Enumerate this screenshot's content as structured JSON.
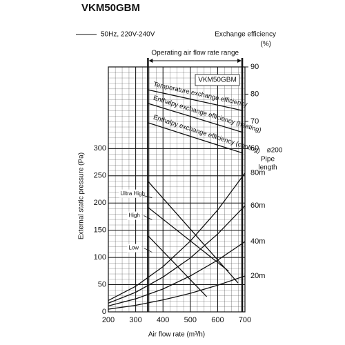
{
  "chart_data": {
    "type": "line",
    "title": "VKM50GBM",
    "power_note": "50Hz, 220V-240V",
    "inset_label": "VKM50GBM",
    "range_label": "Operating air flow rate range",
    "operating_range": [
      345,
      690
    ],
    "x_label": "Air flow rate (m³/h)",
    "y_label": "External static pressure (Pa)",
    "y2_label": "Exchange efficiency",
    "y2_unit": "(%)",
    "pipe_label": "ø200",
    "pipe_label2": "Pipe",
    "pipe_label3": "length",
    "xlim": [
      200,
      700
    ],
    "xticks": [
      200,
      300,
      400,
      500,
      600,
      700
    ],
    "ylim": [
      0,
      450
    ],
    "yticks": [
      0,
      50,
      100,
      150,
      200,
      250,
      300
    ],
    "y2lim": [
      0,
      90
    ],
    "y2ticks": [
      60,
      70,
      80,
      90
    ],
    "grid": true,
    "series": [
      {
        "name": "Ultra High",
        "color": "#111111",
        "x": [
          345,
          675
        ],
        "values": [
          240,
          53
        ]
      },
      {
        "name": "High",
        "color": "#111111",
        "x": [
          345,
          640
        ],
        "values": [
          192,
          75
        ]
      },
      {
        "name": "Low",
        "color": "#111111",
        "x": [
          345,
          560
        ],
        "values": [
          140,
          28
        ]
      },
      {
        "name": "80m",
        "color": "#111111",
        "x": [
          200,
          300,
          400,
          500,
          600,
          700
        ],
        "values": [
          21,
          47,
          83,
          130,
          187,
          255
        ]
      },
      {
        "name": "60m",
        "color": "#111111",
        "x": [
          200,
          300,
          400,
          500,
          600,
          700
        ],
        "values": [
          16,
          36,
          64,
          99,
          143,
          195
        ]
      },
      {
        "name": "40m",
        "color": "#111111",
        "x": [
          200,
          300,
          400,
          500,
          600,
          700
        ],
        "values": [
          11,
          24,
          42,
          66,
          95,
          129
        ]
      },
      {
        "name": "20m",
        "color": "#111111",
        "x": [
          200,
          300,
          400,
          500,
          600,
          700
        ],
        "values": [
          5,
          12,
          22,
          34,
          49,
          66
        ]
      },
      {
        "name": "Temperature exchange efficiency",
        "color": "#111111",
        "axis": "y2",
        "x": [
          345,
          690
        ],
        "values": [
          81.6,
          74
        ]
      },
      {
        "name": "Enthalpy exchange efficiency (heating)",
        "color": "#111111",
        "axis": "y2",
        "x": [
          345,
          690
        ],
        "values": [
          76.6,
          66
        ]
      },
      {
        "name": "Enthalpy exchange efficiency (cooling)",
        "color": "#111111",
        "axis": "y2",
        "x": [
          345,
          690
        ],
        "values": [
          69.5,
          58.4
        ]
      }
    ]
  }
}
